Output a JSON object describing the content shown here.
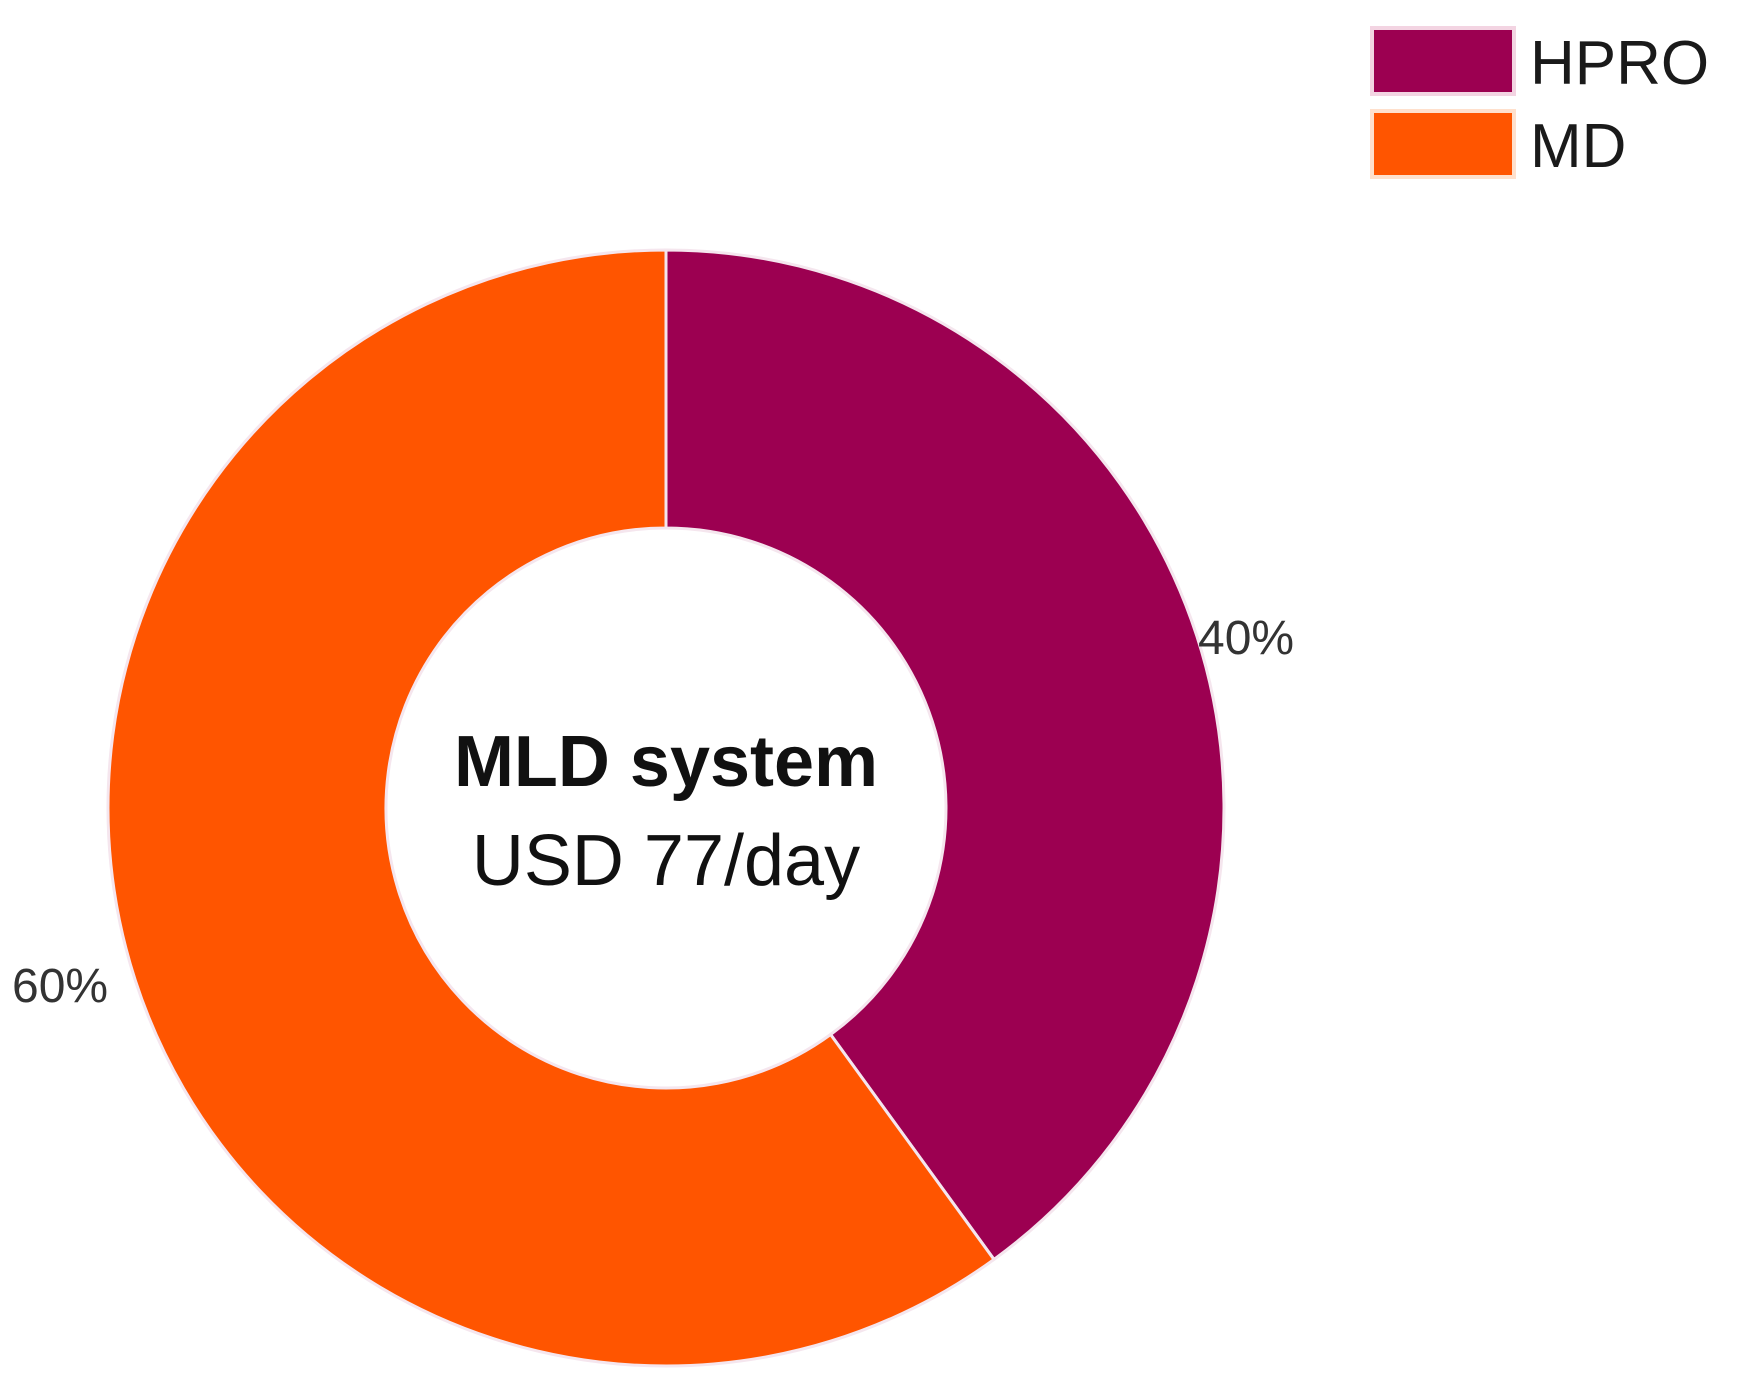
{
  "chart_data": {
    "type": "pie",
    "donut": true,
    "center_text": {
      "title": "MLD system",
      "subtitle": "USD 77/day"
    },
    "categories": [
      "HPRO",
      "MD"
    ],
    "values": [
      40,
      60
    ],
    "value_labels": [
      "40%",
      "60%"
    ],
    "colors": [
      "#9c0051",
      "#ff5500"
    ],
    "legend": {
      "placement": "top-right",
      "entries": [
        "HPRO",
        "MD"
      ]
    }
  }
}
